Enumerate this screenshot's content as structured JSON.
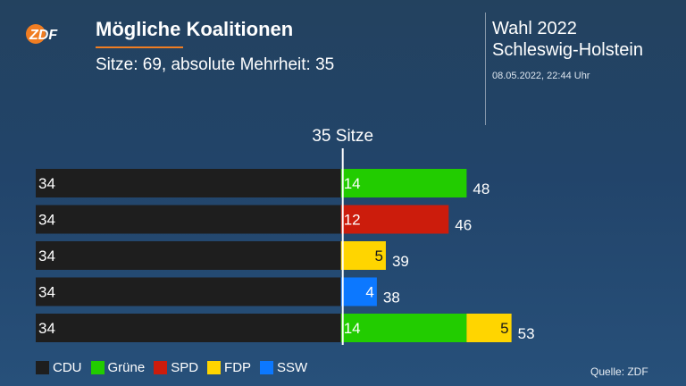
{
  "header": {
    "logo_text": "ZDF",
    "title": "Mögliche Koalitionen",
    "subtitle": "Sitze: 69, absolute Mehrheit: 35",
    "election": "Wahl 2022",
    "region": "Schleswig-Holstein",
    "timestamp": "08.05.2022, 22:44 Uhr"
  },
  "colors": {
    "logo_orange": "#f07d22",
    "CDU": "#1e1e1e",
    "Grüne": "#22cc00",
    "SPD": "#cc1c0c",
    "FDP": "#ffd500",
    "SSW": "#0c78ff"
  },
  "chart_data": {
    "type": "bar",
    "orientation": "horizontal",
    "stacked": true,
    "majority_line": {
      "value": 35,
      "label": "35 Sitze"
    },
    "xlim": [
      0,
      69
    ],
    "rows": [
      {
        "segments": [
          {
            "party": "CDU",
            "value": 34
          },
          {
            "party": "Grüne",
            "value": 14
          }
        ],
        "total": 48
      },
      {
        "segments": [
          {
            "party": "CDU",
            "value": 34
          },
          {
            "party": "SPD",
            "value": 12
          }
        ],
        "total": 46
      },
      {
        "segments": [
          {
            "party": "CDU",
            "value": 34
          },
          {
            "party": "FDP",
            "value": 5
          }
        ],
        "total": 39
      },
      {
        "segments": [
          {
            "party": "CDU",
            "value": 34
          },
          {
            "party": "SSW",
            "value": 4
          }
        ],
        "total": 38
      },
      {
        "segments": [
          {
            "party": "CDU",
            "value": 34
          },
          {
            "party": "Grüne",
            "value": 14
          },
          {
            "party": "FDP",
            "value": 5
          }
        ],
        "total": 53
      }
    ],
    "legend": [
      "CDU",
      "Grüne",
      "SPD",
      "FDP",
      "SSW"
    ],
    "legend_position": "bottom-left",
    "grid": false
  },
  "footer": {
    "source": "Quelle: ZDF"
  }
}
